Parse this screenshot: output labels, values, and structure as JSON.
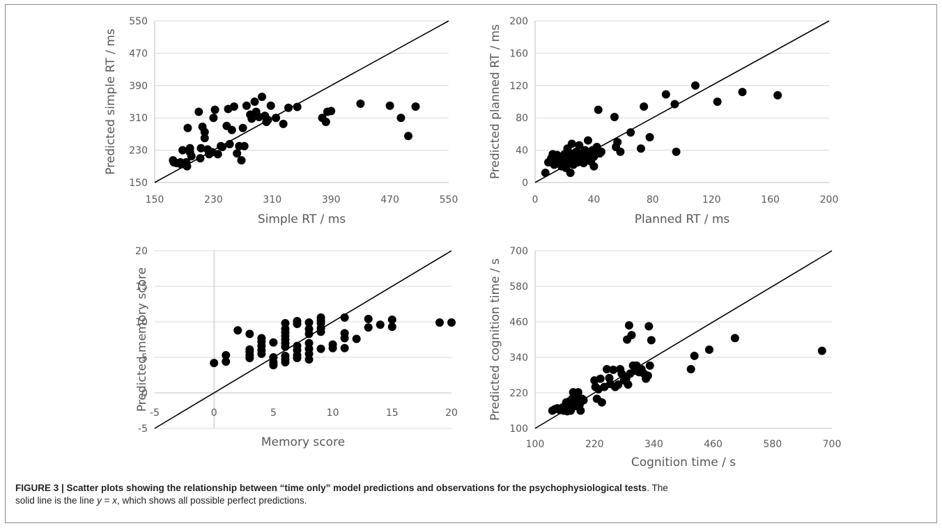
{
  "caption": {
    "label": "FIGURE 3 | Scatter plots showing the relationship between “time only” model predictions and observations for the psychophysiological tests",
    "line1_rest": ". The",
    "line2_pre": "solid line is the line ",
    "eq_y": "y",
    "eq_mid": " = ",
    "eq_x": "x",
    "line2_post": ", which shows all possible perfect predictions."
  },
  "chart_data": [
    {
      "type": "scatter",
      "xlabel": "Simple RT / ms",
      "ylabel": "Predicted simple RT / ms",
      "xlim": [
        150,
        550
      ],
      "ylim": [
        150,
        550
      ],
      "xticks": [
        150,
        230,
        310,
        390,
        470,
        550
      ],
      "yticks": [
        150,
        230,
        310,
        390,
        470,
        550
      ],
      "reference_line": "y = x",
      "points": [
        [
          175,
          205
        ],
        [
          176,
          200
        ],
        [
          180,
          198
        ],
        [
          185,
          200
        ],
        [
          186,
          195
        ],
        [
          188,
          230
        ],
        [
          193,
          200
        ],
        [
          194,
          190
        ],
        [
          195,
          285
        ],
        [
          198,
          235
        ],
        [
          198,
          225
        ],
        [
          200,
          215
        ],
        [
          210,
          325
        ],
        [
          212,
          210
        ],
        [
          213,
          235
        ],
        [
          215,
          288
        ],
        [
          218,
          275
        ],
        [
          218,
          260
        ],
        [
          222,
          232
        ],
        [
          224,
          220
        ],
        [
          228,
          225
        ],
        [
          230,
          310
        ],
        [
          232,
          330
        ],
        [
          236,
          220
        ],
        [
          240,
          240
        ],
        [
          242,
          238
        ],
        [
          248,
          290
        ],
        [
          250,
          332
        ],
        [
          252,
          245
        ],
        [
          255,
          280
        ],
        [
          258,
          338
        ],
        [
          262,
          222
        ],
        [
          265,
          240
        ],
        [
          268,
          205
        ],
        [
          270,
          285
        ],
        [
          272,
          240
        ],
        [
          275,
          340
        ],
        [
          280,
          318
        ],
        [
          282,
          308
        ],
        [
          286,
          350
        ],
        [
          288,
          325
        ],
        [
          292,
          312
        ],
        [
          296,
          362
        ],
        [
          300,
          315
        ],
        [
          302,
          300
        ],
        [
          304,
          305
        ],
        [
          308,
          340
        ],
        [
          315,
          310
        ],
        [
          325,
          295
        ],
        [
          332,
          335
        ],
        [
          344,
          337
        ],
        [
          378,
          310
        ],
        [
          383,
          300
        ],
        [
          385,
          325
        ],
        [
          390,
          327
        ],
        [
          430,
          345
        ],
        [
          470,
          340
        ],
        [
          485,
          310
        ],
        [
          495,
          265
        ],
        [
          505,
          338
        ]
      ]
    },
    {
      "type": "scatter",
      "xlabel": "Planned RT / ms",
      "ylabel": "Predicted planned RT / ms",
      "xlim": [
        0,
        200
      ],
      "ylim": [
        0,
        200
      ],
      "xticks": [
        0,
        40,
        80,
        120,
        160,
        200
      ],
      "yticks": [
        0,
        40,
        80,
        120,
        160,
        200
      ],
      "reference_line": "y = x",
      "points": [
        [
          7,
          12
        ],
        [
          9,
          25
        ],
        [
          11,
          30
        ],
        [
          12,
          35
        ],
        [
          13,
          22
        ],
        [
          14,
          28
        ],
        [
          15,
          34
        ],
        [
          16,
          26
        ],
        [
          17,
          30
        ],
        [
          18,
          20
        ],
        [
          18,
          32
        ],
        [
          19,
          24
        ],
        [
          20,
          28
        ],
        [
          20,
          35
        ],
        [
          21,
          18
        ],
        [
          22,
          30
        ],
        [
          22,
          42
        ],
        [
          23,
          26
        ],
        [
          24,
          12
        ],
        [
          24,
          36
        ],
        [
          25,
          48
        ],
        [
          26,
          22
        ],
        [
          27,
          30
        ],
        [
          28,
          38
        ],
        [
          29,
          25
        ],
        [
          30,
          46
        ],
        [
          30,
          32
        ],
        [
          31,
          28
        ],
        [
          32,
          36
        ],
        [
          33,
          24
        ],
        [
          34,
          40
        ],
        [
          35,
          30
        ],
        [
          36,
          52
        ],
        [
          37,
          34
        ],
        [
          38,
          26
        ],
        [
          39,
          40
        ],
        [
          40,
          20
        ],
        [
          40,
          32
        ],
        [
          42,
          44
        ],
        [
          43,
          90
        ],
        [
          44,
          36
        ],
        [
          45,
          38
        ],
        [
          54,
          81
        ],
        [
          55,
          44
        ],
        [
          56,
          50
        ],
        [
          58,
          38
        ],
        [
          65,
          62
        ],
        [
          72,
          42
        ],
        [
          74,
          94
        ],
        [
          78,
          56
        ],
        [
          89,
          109
        ],
        [
          95,
          97
        ],
        [
          96,
          38
        ],
        [
          109,
          120
        ],
        [
          124,
          100
        ],
        [
          141,
          112
        ],
        [
          165,
          108
        ]
      ]
    },
    {
      "type": "scatter",
      "xlabel": "Memory score",
      "ylabel": "Predicted memory score",
      "xlim": [
        -5,
        20
      ],
      "ylim": [
        -5,
        20
      ],
      "xticks": [
        -5,
        0,
        5,
        10,
        15,
        20
      ],
      "yticks": [
        -5,
        0,
        5,
        10,
        15,
        20
      ],
      "reference_line": "y = x",
      "points": [
        [
          0,
          4.2
        ],
        [
          1,
          4.4
        ],
        [
          1,
          5.3
        ],
        [
          2,
          8.8
        ],
        [
          3,
          4.9
        ],
        [
          3,
          5.3
        ],
        [
          3,
          5.8
        ],
        [
          3,
          6.1
        ],
        [
          3,
          8.3
        ],
        [
          4,
          5.5
        ],
        [
          4,
          6.0
        ],
        [
          4,
          6.6
        ],
        [
          4,
          7.2
        ],
        [
          4,
          7.7
        ],
        [
          5,
          3.9
        ],
        [
          5,
          4.3
        ],
        [
          5,
          5.0
        ],
        [
          5,
          7.1
        ],
        [
          6,
          4.3
        ],
        [
          6,
          4.7
        ],
        [
          6,
          5.2
        ],
        [
          6,
          6.5
        ],
        [
          6,
          7.0
        ],
        [
          6,
          7.5
        ],
        [
          6,
          8.0
        ],
        [
          6,
          8.5
        ],
        [
          6,
          9.0
        ],
        [
          6,
          9.8
        ],
        [
          7,
          4.9
        ],
        [
          7,
          5.3
        ],
        [
          7,
          6.0
        ],
        [
          7,
          6.6
        ],
        [
          7,
          9.7
        ],
        [
          7,
          10.1
        ],
        [
          8,
          4.7
        ],
        [
          8,
          5.5
        ],
        [
          8,
          6.2
        ],
        [
          8,
          7.0
        ],
        [
          8,
          8.3
        ],
        [
          8,
          9.0
        ],
        [
          8,
          9.9
        ],
        [
          9,
          6.2
        ],
        [
          9,
          8.6
        ],
        [
          9,
          9.1
        ],
        [
          9,
          9.8
        ],
        [
          9,
          10.2
        ],
        [
          9,
          10.6
        ],
        [
          10,
          6.3
        ],
        [
          10,
          6.8
        ],
        [
          11,
          6.3
        ],
        [
          11,
          7.7
        ],
        [
          11,
          8.4
        ],
        [
          11,
          10.6
        ],
        [
          12,
          7.6
        ],
        [
          13,
          9.2
        ],
        [
          13,
          10.4
        ],
        [
          14,
          9.6
        ],
        [
          15,
          9.3
        ],
        [
          15,
          10.3
        ],
        [
          19,
          9.9
        ],
        [
          20,
          9.9
        ]
      ]
    },
    {
      "type": "scatter",
      "xlabel": "Cognition time / s",
      "ylabel": "Predicted cognition time / s",
      "xlim": [
        100,
        700
      ],
      "ylim": [
        100,
        700
      ],
      "xticks": [
        100,
        220,
        340,
        460,
        580,
        700
      ],
      "yticks": [
        100,
        220,
        340,
        460,
        580,
        700
      ],
      "reference_line": "y = x",
      "points": [
        [
          135,
          160
        ],
        [
          140,
          165
        ],
        [
          145,
          168
        ],
        [
          150,
          162
        ],
        [
          155,
          170
        ],
        [
          158,
          160
        ],
        [
          160,
          175
        ],
        [
          163,
          188
        ],
        [
          165,
          158
        ],
        [
          168,
          180
        ],
        [
          170,
          192
        ],
        [
          172,
          160
        ],
        [
          175,
          200
        ],
        [
          177,
          222
        ],
        [
          180,
          175
        ],
        [
          182,
          190
        ],
        [
          185,
          210
        ],
        [
          187,
          222
        ],
        [
          190,
          180
        ],
        [
          192,
          160
        ],
        [
          195,
          200
        ],
        [
          198,
          195
        ],
        [
          220,
          262
        ],
        [
          222,
          240
        ],
        [
          225,
          200
        ],
        [
          228,
          232
        ],
        [
          232,
          268
        ],
        [
          235,
          188
        ],
        [
          240,
          240
        ],
        [
          245,
          300
        ],
        [
          250,
          270
        ],
        [
          252,
          250
        ],
        [
          258,
          298
        ],
        [
          262,
          240
        ],
        [
          268,
          248
        ],
        [
          272,
          300
        ],
        [
          275,
          285
        ],
        [
          280,
          262
        ],
        [
          284,
          268
        ],
        [
          286,
          400
        ],
        [
          288,
          248
        ],
        [
          290,
          448
        ],
        [
          292,
          285
        ],
        [
          295,
          415
        ],
        [
          298,
          312
        ],
        [
          302,
          295
        ],
        [
          305,
          312
        ],
        [
          310,
          290
        ],
        [
          315,
          300
        ],
        [
          320,
          285
        ],
        [
          324,
          268
        ],
        [
          328,
          278
        ],
        [
          330,
          445
        ],
        [
          332,
          312
        ],
        [
          335,
          398
        ],
        [
          415,
          300
        ],
        [
          422,
          345
        ],
        [
          452,
          366
        ],
        [
          504,
          405
        ],
        [
          680,
          362
        ]
      ]
    }
  ]
}
